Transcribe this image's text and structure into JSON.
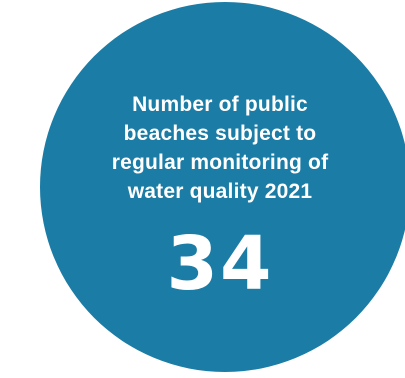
{
  "infographic": {
    "caption_lines": [
      "Number of public",
      "beaches subject to",
      "regular monitoring of",
      "water quality 2021"
    ],
    "value": "34"
  },
  "colors": {
    "circle_fill": "#1b7ca5",
    "text": "#ffffff",
    "background": "#ffffff"
  }
}
